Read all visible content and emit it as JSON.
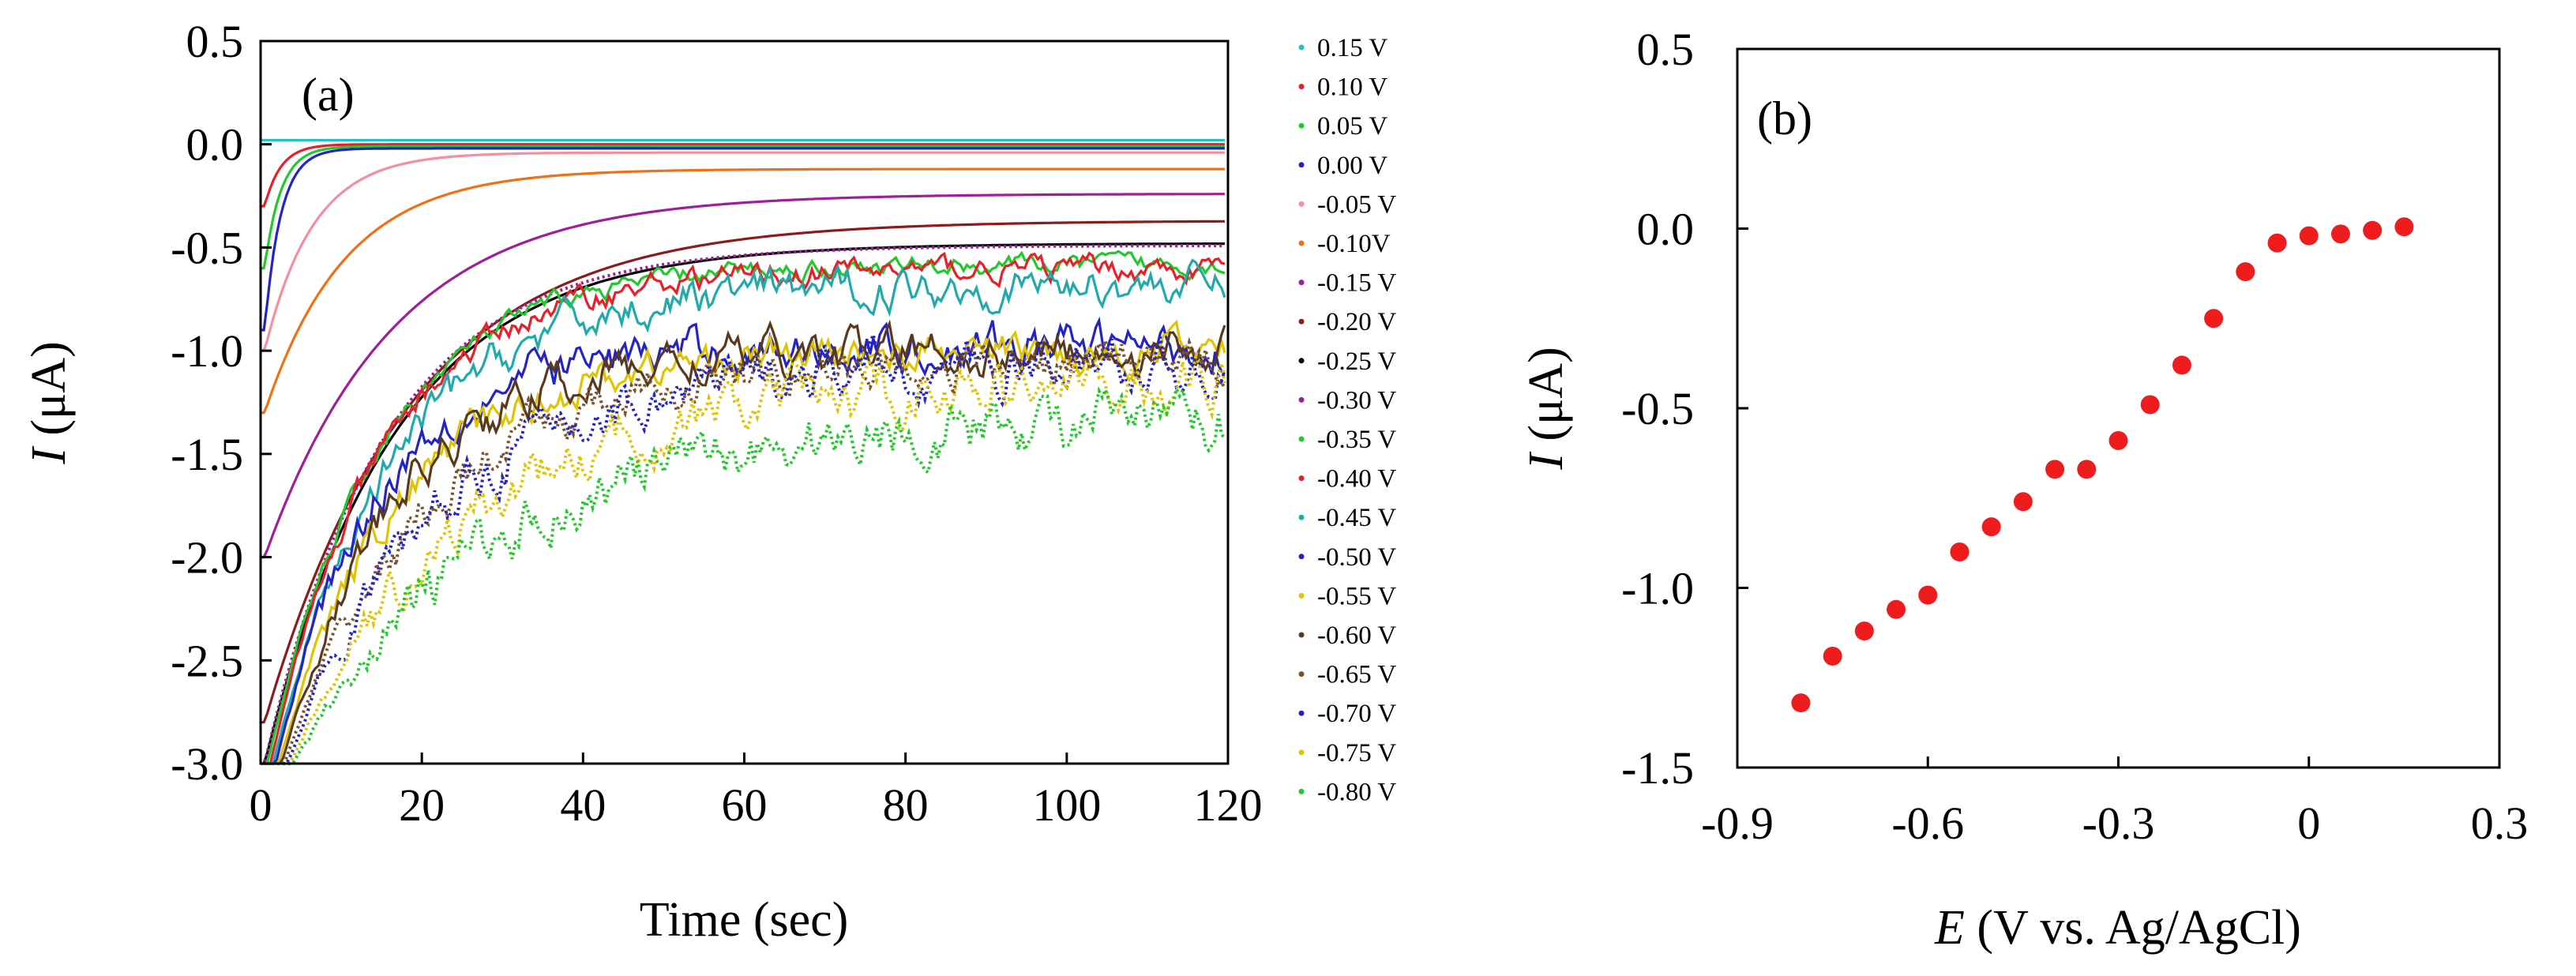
{
  "chart_data": [
    {
      "type": "line",
      "panel_label": "(a)",
      "xlabel": "Time (sec)",
      "ylabel_italic": "I",
      "ylabel_rest": " (μA)",
      "xlim": [
        0,
        120
      ],
      "ylim": [
        -3.0,
        0.5
      ],
      "xticks": [
        0,
        20,
        40,
        60,
        80,
        100,
        120
      ],
      "xtick_labels": [
        "0",
        "20",
        "40",
        "60",
        "80",
        "100",
        "120"
      ],
      "yticks": [
        0.5,
        0.0,
        -0.5,
        -1.0,
        -1.5,
        -2.0,
        -2.5,
        -3.0
      ],
      "ytick_labels": [
        "0.5",
        "0.0",
        "-0.5",
        "-1.0",
        "-1.5",
        "-2.0",
        "-2.5",
        "-3.0"
      ],
      "legend_position": "right, outside plot",
      "series": [
        {
          "name": "0.15 V",
          "color": "#22c3c3",
          "steady": 0.02,
          "start": 0.02,
          "tau": 1.0,
          "noise": 0.0,
          "dotted": false
        },
        {
          "name": "0.10 V",
          "color": "#e8202a",
          "steady": 0.0,
          "start": -0.3,
          "tau": 2.0,
          "noise": 0.0,
          "dotted": false
        },
        {
          "name": "0.05 V",
          "color": "#22c92c",
          "steady": -0.01,
          "start": -0.6,
          "tau": 2.0,
          "noise": 0.0,
          "dotted": false
        },
        {
          "name": "0.00 V",
          "color": "#2323c8",
          "steady": -0.02,
          "start": -0.9,
          "tau": 2.0,
          "noise": 0.0,
          "dotted": false
        },
        {
          "name": "-0.05 V",
          "color": "#f48fa0",
          "steady": -0.04,
          "start": -1.0,
          "tau": 6.0,
          "noise": 0.0,
          "dotted": false
        },
        {
          "name": "-0.10V",
          "color": "#f07016",
          "steady": -0.12,
          "start": -1.3,
          "tau": 10.0,
          "noise": 0.0,
          "dotted": false
        },
        {
          "name": "-0.15 V",
          "color": "#a01e9a",
          "steady": -0.24,
          "start": -2.0,
          "tau": 16.0,
          "noise": 0.0,
          "dotted": false
        },
        {
          "name": "-0.20 V",
          "color": "#8b1c1c",
          "steady": -0.37,
          "start": -2.8,
          "tau": 18.0,
          "noise": 0.0,
          "dotted": false
        },
        {
          "name": "-0.25 V",
          "color": "#000000",
          "steady": -0.48,
          "start": -3.0,
          "tau": 16.0,
          "noise": 0.0,
          "dotted": false
        },
        {
          "name": "-0.30 V",
          "color": "#a01e9a",
          "steady": -0.49,
          "start": -3.0,
          "tau": 15.0,
          "noise": 0.0,
          "dotted": true
        },
        {
          "name": "-0.35 V",
          "color": "#22c92c",
          "steady": -0.58,
          "start": -3.0,
          "tau": 14.0,
          "noise": 0.03,
          "dotted": false
        },
        {
          "name": "-0.40 V",
          "color": "#e8202a",
          "steady": -0.6,
          "start": -3.0,
          "tau": 14.0,
          "noise": 0.04,
          "dotted": false
        },
        {
          "name": "-0.45 V",
          "color": "#22aaaa",
          "steady": -0.68,
          "start": -3.0,
          "tau": 15.0,
          "noise": 0.06,
          "dotted": false
        },
        {
          "name": "-0.50 V",
          "color": "#2323c8",
          "steady": -0.98,
          "start": -3.0,
          "tau": 12.0,
          "noise": 0.07,
          "dotted": false
        },
        {
          "name": "-0.55 V",
          "color": "#e0c400",
          "steady": -1.0,
          "start": -3.0,
          "tau": 15.0,
          "noise": 0.06,
          "dotted": false
        },
        {
          "name": "-0.60 V",
          "color": "#5a3a1e",
          "steady": -1.0,
          "start": -3.0,
          "tau": 14.0,
          "noise": 0.07,
          "dotted": false
        },
        {
          "name": "-0.65 V",
          "color": "#7a5230",
          "steady": -1.05,
          "start": -3.0,
          "tau": 18.0,
          "noise": 0.07,
          "dotted": true
        },
        {
          "name": "-0.70 V",
          "color": "#2323c8",
          "steady": -1.08,
          "start": -3.0,
          "tau": 18.0,
          "noise": 0.08,
          "dotted": true
        },
        {
          "name": "-0.75 V",
          "color": "#e0c400",
          "steady": -1.15,
          "start": -3.0,
          "tau": 22.0,
          "noise": 0.08,
          "dotted": true
        },
        {
          "name": "-0.80 V",
          "color": "#22c92c",
          "steady": -1.32,
          "start": -3.0,
          "tau": 24.0,
          "noise": 0.09,
          "dotted": true
        }
      ]
    },
    {
      "type": "scatter",
      "panel_label": "(b)",
      "xlabel_italic": "E",
      "xlabel_rest": " (V vs. Ag/AgCl)",
      "ylabel_italic": "I",
      "ylabel_rest": " (μA)",
      "xlim": [
        -0.9,
        0.3
      ],
      "ylim": [
        -1.5,
        0.5
      ],
      "xticks": [
        -0.9,
        -0.6,
        -0.3,
        0.0,
        0.3
      ],
      "xtick_labels": [
        "-0.9",
        "-0.6",
        "-0.3",
        "0",
        "0.3"
      ],
      "yticks": [
        0.5,
        0.0,
        -0.5,
        -1.0,
        -1.5
      ],
      "ytick_labels": [
        "0.5",
        "0.0",
        "-0.5",
        "-1.0",
        "-1.5"
      ],
      "marker_color": "#ee1c1c",
      "x": [
        -0.8,
        -0.75,
        -0.7,
        -0.65,
        -0.6,
        -0.55,
        -0.5,
        -0.45,
        -0.4,
        -0.35,
        -0.3,
        -0.25,
        -0.2,
        -0.15,
        -0.1,
        -0.05,
        0.0,
        0.05,
        0.1,
        0.15
      ],
      "y": [
        -1.32,
        -1.19,
        -1.12,
        -1.06,
        -1.02,
        -0.9,
        -0.83,
        -0.76,
        -0.67,
        -0.67,
        -0.59,
        -0.49,
        -0.38,
        -0.25,
        -0.12,
        -0.04,
        -0.02,
        -0.015,
        -0.005,
        0.005
      ]
    }
  ]
}
